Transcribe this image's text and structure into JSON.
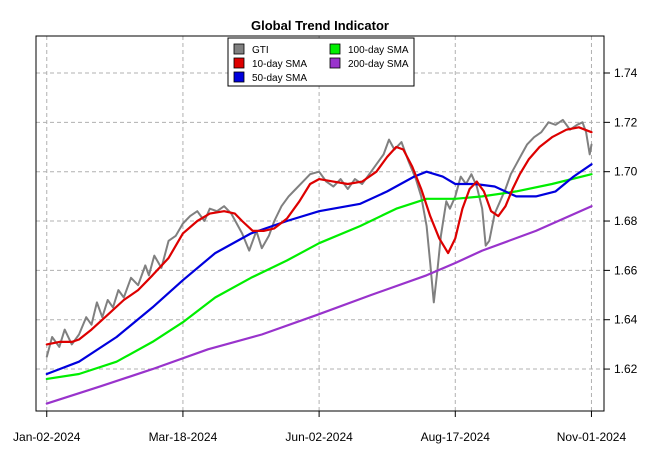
{
  "chart_data": {
    "type": "line",
    "title": "Global Trend Indicator",
    "xlabel": "",
    "ylabel": "",
    "x_range": [
      "2023-12-27",
      "2024-11-08"
    ],
    "ylim": [
      1.603,
      1.755
    ],
    "x_ticks": [
      {
        "date": "2024-01-02",
        "label": "Jan-02-2024"
      },
      {
        "date": "2024-03-18",
        "label": "Mar-18-2024"
      },
      {
        "date": "2024-06-02",
        "label": "Jun-02-2024"
      },
      {
        "date": "2024-08-17",
        "label": "Aug-17-2024"
      },
      {
        "date": "2024-11-01",
        "label": "Nov-01-2024"
      }
    ],
    "y_ticks": [
      "1.62",
      "1.64",
      "1.66",
      "1.68",
      "1.70",
      "1.72",
      "1.74"
    ],
    "grid": true,
    "legend_position": "top-center",
    "series": [
      {
        "name": "GTI",
        "color": "#808080",
        "points": [
          [
            "2024-01-02",
            1.625
          ],
          [
            "2024-01-05",
            1.633
          ],
          [
            "2024-01-09",
            1.629
          ],
          [
            "2024-01-12",
            1.636
          ],
          [
            "2024-01-16",
            1.63
          ],
          [
            "2024-01-20",
            1.634
          ],
          [
            "2024-01-24",
            1.641
          ],
          [
            "2024-01-27",
            1.638
          ],
          [
            "2024-01-30",
            1.647
          ],
          [
            "2024-02-02",
            1.641
          ],
          [
            "2024-02-05",
            1.648
          ],
          [
            "2024-02-08",
            1.645
          ],
          [
            "2024-02-11",
            1.652
          ],
          [
            "2024-02-14",
            1.649
          ],
          [
            "2024-02-18",
            1.657
          ],
          [
            "2024-02-22",
            1.654
          ],
          [
            "2024-02-26",
            1.662
          ],
          [
            "2024-02-28",
            1.658
          ],
          [
            "2024-03-02",
            1.666
          ],
          [
            "2024-03-06",
            1.661
          ],
          [
            "2024-03-10",
            1.672
          ],
          [
            "2024-03-14",
            1.674
          ],
          [
            "2024-03-18",
            1.679
          ],
          [
            "2024-03-22",
            1.682
          ],
          [
            "2024-03-26",
            1.684
          ],
          [
            "2024-03-30",
            1.68
          ],
          [
            "2024-04-02",
            1.685
          ],
          [
            "2024-04-06",
            1.684
          ],
          [
            "2024-04-10",
            1.686
          ],
          [
            "2024-04-14",
            1.683
          ],
          [
            "2024-04-17",
            1.679
          ],
          [
            "2024-04-20",
            1.675
          ],
          [
            "2024-04-24",
            1.668
          ],
          [
            "2024-04-28",
            1.676
          ],
          [
            "2024-05-01",
            1.669
          ],
          [
            "2024-05-05",
            1.674
          ],
          [
            "2024-05-08",
            1.68
          ],
          [
            "2024-05-12",
            1.686
          ],
          [
            "2024-05-16",
            1.69
          ],
          [
            "2024-05-20",
            1.693
          ],
          [
            "2024-05-24",
            1.696
          ],
          [
            "2024-05-28",
            1.699
          ],
          [
            "2024-06-02",
            1.7
          ],
          [
            "2024-06-06",
            1.696
          ],
          [
            "2024-06-10",
            1.694
          ],
          [
            "2024-06-14",
            1.697
          ],
          [
            "2024-06-18",
            1.693
          ],
          [
            "2024-06-22",
            1.697
          ],
          [
            "2024-06-26",
            1.695
          ],
          [
            "2024-06-30",
            1.699
          ],
          [
            "2024-07-04",
            1.703
          ],
          [
            "2024-07-08",
            1.707
          ],
          [
            "2024-07-11",
            1.713
          ],
          [
            "2024-07-14",
            1.709
          ],
          [
            "2024-07-18",
            1.712
          ],
          [
            "2024-07-22",
            1.704
          ],
          [
            "2024-07-26",
            1.697
          ],
          [
            "2024-07-29",
            1.69
          ],
          [
            "2024-08-01",
            1.678
          ],
          [
            "2024-08-03",
            1.663
          ],
          [
            "2024-08-05",
            1.647
          ],
          [
            "2024-08-07",
            1.66
          ],
          [
            "2024-08-09",
            1.674
          ],
          [
            "2024-08-12",
            1.688
          ],
          [
            "2024-08-14",
            1.685
          ],
          [
            "2024-08-17",
            1.69
          ],
          [
            "2024-08-20",
            1.698
          ],
          [
            "2024-08-23",
            1.695
          ],
          [
            "2024-08-26",
            1.699
          ],
          [
            "2024-08-29",
            1.694
          ],
          [
            "2024-09-01",
            1.685
          ],
          [
            "2024-09-03",
            1.67
          ],
          [
            "2024-09-05",
            1.672
          ],
          [
            "2024-09-08",
            1.683
          ],
          [
            "2024-09-11",
            1.688
          ],
          [
            "2024-09-14",
            1.693
          ],
          [
            "2024-09-17",
            1.699
          ],
          [
            "2024-09-20",
            1.703
          ],
          [
            "2024-09-23",
            1.707
          ],
          [
            "2024-09-26",
            1.711
          ],
          [
            "2024-09-30",
            1.714
          ],
          [
            "2024-10-04",
            1.716
          ],
          [
            "2024-10-08",
            1.72
          ],
          [
            "2024-10-12",
            1.719
          ],
          [
            "2024-10-16",
            1.721
          ],
          [
            "2024-10-20",
            1.717
          ],
          [
            "2024-10-24",
            1.719
          ],
          [
            "2024-10-27",
            1.72
          ],
          [
            "2024-10-29",
            1.716
          ],
          [
            "2024-10-31",
            1.707
          ],
          [
            "2024-11-01",
            1.711
          ]
        ]
      },
      {
        "name": "10-day SMA",
        "color": "#dd0000",
        "points": [
          [
            "2024-01-02",
            1.63
          ],
          [
            "2024-01-09",
            1.631
          ],
          [
            "2024-01-16",
            1.631
          ],
          [
            "2024-01-20",
            1.632
          ],
          [
            "2024-01-27",
            1.636
          ],
          [
            "2024-02-05",
            1.642
          ],
          [
            "2024-02-14",
            1.648
          ],
          [
            "2024-02-22",
            1.652
          ],
          [
            "2024-03-01",
            1.658
          ],
          [
            "2024-03-10",
            1.665
          ],
          [
            "2024-03-18",
            1.675
          ],
          [
            "2024-03-26",
            1.68
          ],
          [
            "2024-04-02",
            1.683
          ],
          [
            "2024-04-10",
            1.684
          ],
          [
            "2024-04-16",
            1.683
          ],
          [
            "2024-04-20",
            1.68
          ],
          [
            "2024-04-26",
            1.676
          ],
          [
            "2024-05-02",
            1.676
          ],
          [
            "2024-05-08",
            1.677
          ],
          [
            "2024-05-15",
            1.681
          ],
          [
            "2024-05-22",
            1.688
          ],
          [
            "2024-05-28",
            1.695
          ],
          [
            "2024-06-02",
            1.697
          ],
          [
            "2024-06-10",
            1.696
          ],
          [
            "2024-06-18",
            1.695
          ],
          [
            "2024-06-26",
            1.696
          ],
          [
            "2024-07-04",
            1.7
          ],
          [
            "2024-07-10",
            1.706
          ],
          [
            "2024-07-15",
            1.71
          ],
          [
            "2024-07-19",
            1.709
          ],
          [
            "2024-07-24",
            1.702
          ],
          [
            "2024-07-29",
            1.693
          ],
          [
            "2024-08-03",
            1.682
          ],
          [
            "2024-08-08",
            1.673
          ],
          [
            "2024-08-13",
            1.667
          ],
          [
            "2024-08-17",
            1.673
          ],
          [
            "2024-08-21",
            1.685
          ],
          [
            "2024-08-25",
            1.693
          ],
          [
            "2024-08-29",
            1.696
          ],
          [
            "2024-09-02",
            1.692
          ],
          [
            "2024-09-06",
            1.684
          ],
          [
            "2024-09-10",
            1.682
          ],
          [
            "2024-09-14",
            1.686
          ],
          [
            "2024-09-18",
            1.693
          ],
          [
            "2024-09-22",
            1.699
          ],
          [
            "2024-09-27",
            1.705
          ],
          [
            "2024-10-03",
            1.71
          ],
          [
            "2024-10-10",
            1.714
          ],
          [
            "2024-10-18",
            1.717
          ],
          [
            "2024-10-25",
            1.718
          ],
          [
            "2024-11-01",
            1.716
          ]
        ]
      },
      {
        "name": "50-day SMA",
        "color": "#0000dd",
        "points": [
          [
            "2024-01-02",
            1.618
          ],
          [
            "2024-01-20",
            1.623
          ],
          [
            "2024-02-10",
            1.633
          ],
          [
            "2024-03-01",
            1.645
          ],
          [
            "2024-03-18",
            1.656
          ],
          [
            "2024-04-05",
            1.667
          ],
          [
            "2024-04-25",
            1.675
          ],
          [
            "2024-05-15",
            1.68
          ],
          [
            "2024-06-02",
            1.684
          ],
          [
            "2024-06-25",
            1.687
          ],
          [
            "2024-07-10",
            1.692
          ],
          [
            "2024-07-25",
            1.698
          ],
          [
            "2024-08-01",
            1.7
          ],
          [
            "2024-08-10",
            1.698
          ],
          [
            "2024-08-17",
            1.695
          ],
          [
            "2024-08-28",
            1.695
          ],
          [
            "2024-09-08",
            1.694
          ],
          [
            "2024-09-20",
            1.69
          ],
          [
            "2024-10-01",
            1.69
          ],
          [
            "2024-10-12",
            1.692
          ],
          [
            "2024-10-22",
            1.698
          ],
          [
            "2024-11-01",
            1.703
          ]
        ]
      },
      {
        "name": "100-day SMA",
        "color": "#00ee00",
        "points": [
          [
            "2024-01-02",
            1.616
          ],
          [
            "2024-01-20",
            1.618
          ],
          [
            "2024-02-10",
            1.623
          ],
          [
            "2024-03-01",
            1.631
          ],
          [
            "2024-03-18",
            1.639
          ],
          [
            "2024-04-05",
            1.649
          ],
          [
            "2024-04-25",
            1.657
          ],
          [
            "2024-05-15",
            1.664
          ],
          [
            "2024-06-02",
            1.671
          ],
          [
            "2024-06-25",
            1.678
          ],
          [
            "2024-07-15",
            1.685
          ],
          [
            "2024-08-01",
            1.689
          ],
          [
            "2024-08-17",
            1.689
          ],
          [
            "2024-09-01",
            1.69
          ],
          [
            "2024-09-20",
            1.692
          ],
          [
            "2024-10-10",
            1.695
          ],
          [
            "2024-11-01",
            1.699
          ]
        ]
      },
      {
        "name": "200-day SMA",
        "color": "#9933cc",
        "points": [
          [
            "2024-01-02",
            1.606
          ],
          [
            "2024-02-01",
            1.613
          ],
          [
            "2024-03-01",
            1.62
          ],
          [
            "2024-04-01",
            1.628
          ],
          [
            "2024-05-01",
            1.634
          ],
          [
            "2024-06-01",
            1.642
          ],
          [
            "2024-07-01",
            1.65
          ],
          [
            "2024-08-01",
            1.658
          ],
          [
            "2024-08-17",
            1.663
          ],
          [
            "2024-09-01",
            1.668
          ],
          [
            "2024-10-01",
            1.676
          ],
          [
            "2024-11-01",
            1.686
          ]
        ]
      }
    ]
  }
}
